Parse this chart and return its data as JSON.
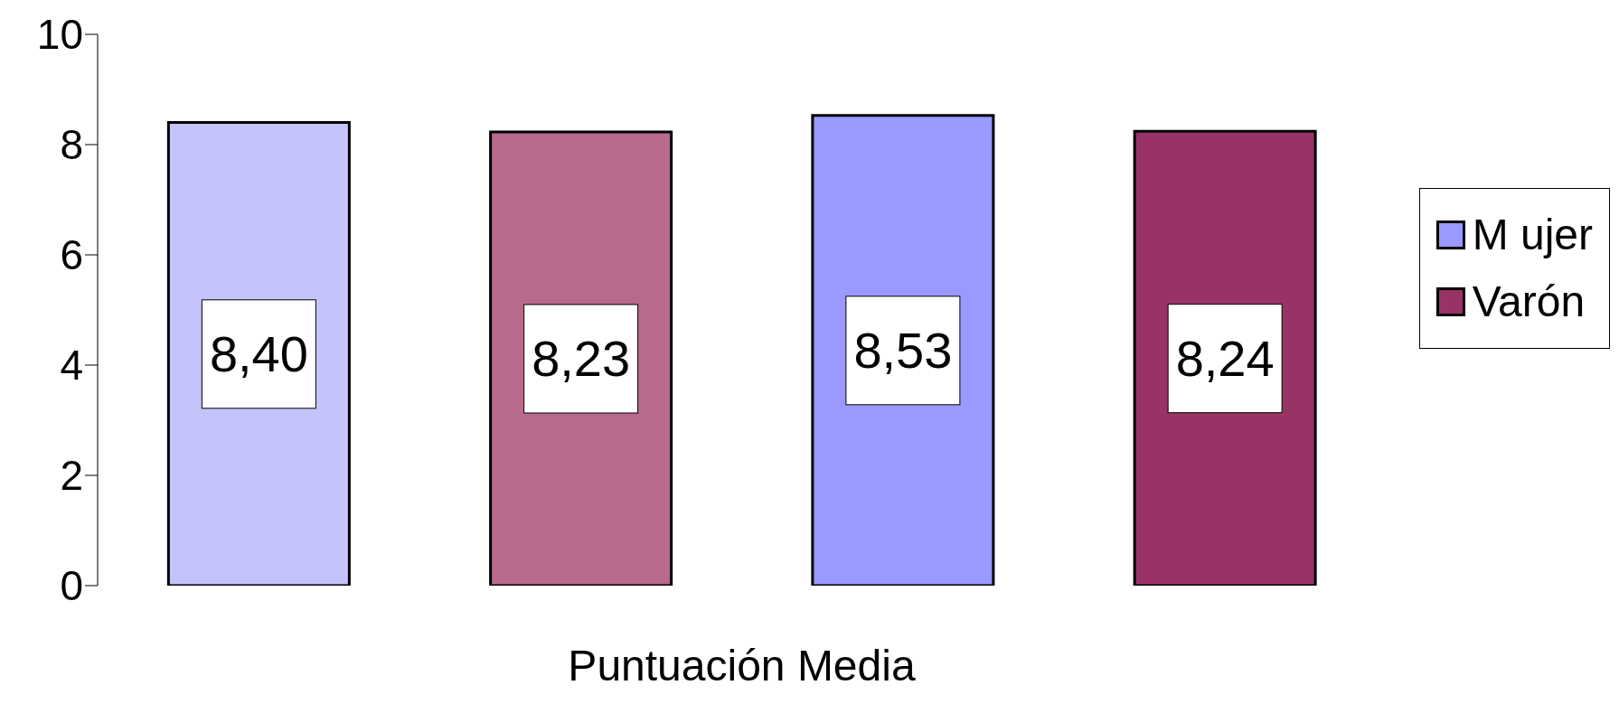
{
  "chart_data": {
    "type": "bar",
    "xlabel": "Puntuación Media",
    "categories": [
      null,
      null,
      null,
      null
    ],
    "series": [
      {
        "name": "M ujer",
        "color": "#9999ff",
        "colors": [
          "#c4c4fb",
          null,
          "#9999ff",
          null
        ],
        "values": [
          8.4,
          null,
          8.53,
          null
        ],
        "value_labels": [
          "8,40",
          null,
          "8,53",
          null
        ]
      },
      {
        "name": "Varón",
        "color": "#993366",
        "colors": [
          null,
          "#b86a8c",
          null,
          "#993366"
        ],
        "values": [
          null,
          8.23,
          null,
          8.24
        ],
        "value_labels": [
          null,
          "8,23",
          null,
          "8,24"
        ]
      }
    ],
    "stacked": true,
    "ylim": [
      0,
      10
    ],
    "yticks": [
      0,
      2,
      4,
      6,
      8,
      10
    ],
    "grid": false,
    "legend": "right"
  }
}
